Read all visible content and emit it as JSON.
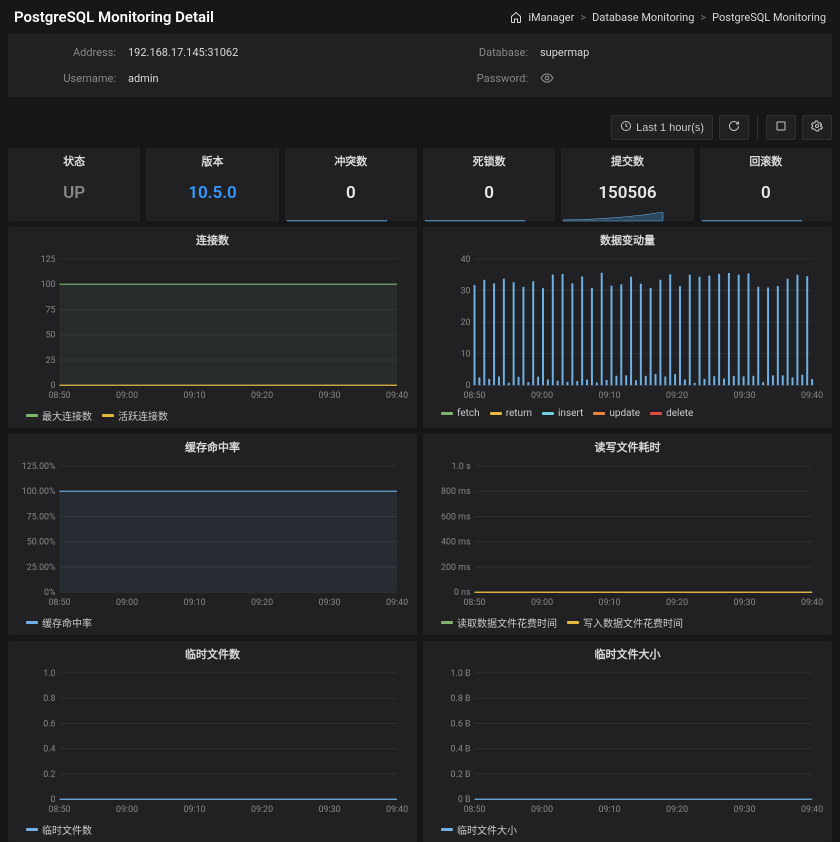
{
  "title": "PostgreSQL Monitoring Detail",
  "breadcrumb": {
    "home": "iManager",
    "level1": "Database Monitoring",
    "level2": "PostgreSQL Monitoring",
    "separator": ">"
  },
  "info": {
    "address_label": "Address:",
    "address_value": "192.168.17.145:31062",
    "username_label": "Username:",
    "username_value": "admin",
    "database_label": "Database:",
    "database_value": "supermap",
    "password_label": "Password:"
  },
  "toolbar": {
    "timerange": "Last 1 hour(s)"
  },
  "stats": {
    "s1": {
      "title": "状态",
      "value": "UP",
      "class": "v-up",
      "sparkline": false,
      "spark_color": "",
      "spark_fill": ""
    },
    "s2": {
      "title": "版本",
      "value": "10.5.0",
      "class": "v-blue",
      "sparkline": false,
      "spark_color": "",
      "spark_fill": ""
    },
    "s3": {
      "title": "冲突数",
      "value": "0",
      "class": "v-white",
      "sparkline": true,
      "spark_color": "#6fb1e4",
      "spark_fill": "#2a4860"
    },
    "s4": {
      "title": "死锁数",
      "value": "0",
      "class": "v-white",
      "sparkline": true,
      "spark_color": "#6fb1e4",
      "spark_fill": "#2a4860"
    },
    "s5": {
      "title": "提交数",
      "value": "150506",
      "class": "v-white",
      "sparkline": true,
      "spark_color": "#6fb1e4",
      "spark_fill": "#2a4860"
    },
    "s6": {
      "title": "回滚数",
      "value": "0",
      "class": "v-white",
      "sparkline": true,
      "spark_color": "#6fb1e4",
      "spark_fill": "#2a4860"
    }
  },
  "charts": {
    "c1": {
      "title": "连接数",
      "y_ticks": [
        "0",
        "25",
        "50",
        "75",
        "100",
        "125"
      ],
      "y_values": [
        0,
        25,
        50,
        75,
        100,
        125
      ],
      "ylim": [
        0,
        125
      ],
      "x_ticks": [
        "08:50",
        "09:00",
        "09:10",
        "09:20",
        "09:30",
        "09:40"
      ],
      "series": [
        {
          "name": "最大连接数",
          "color": "#7eb26d",
          "value_flat": 100,
          "fill": true
        },
        {
          "name": "活跃连接数",
          "color": "#e5b93e",
          "value_flat": 0
        }
      ]
    },
    "c2": {
      "title": "数据变动量",
      "y_ticks": [
        "0",
        "10",
        "20",
        "30",
        "40"
      ],
      "y_values": [
        0,
        10,
        20,
        30,
        40
      ],
      "ylim": [
        0,
        40
      ],
      "x_ticks": [
        "08:50",
        "09:00",
        "09:10",
        "09:20",
        "09:30",
        "09:40"
      ],
      "dense_bars": {
        "color": "#6fb1e4",
        "max": 36,
        "min": 0
      },
      "series": [
        {
          "name": "fetch",
          "color": "#7eb26d"
        },
        {
          "name": "return",
          "color": "#e5b93e"
        },
        {
          "name": "insert",
          "color": "#6ed0e0"
        },
        {
          "name": "update",
          "color": "#ef843c"
        },
        {
          "name": "delete",
          "color": "#e24d42"
        }
      ]
    },
    "c3": {
      "title": "缓存命中率",
      "y_ticks": [
        "0%",
        "25.00%",
        "50.00%",
        "75.00%",
        "100.00%",
        "125.00%"
      ],
      "y_values": [
        0,
        25,
        50,
        75,
        100,
        125
      ],
      "ylim": [
        0,
        125
      ],
      "x_ticks": [
        "08:50",
        "09:00",
        "09:10",
        "09:20",
        "09:30",
        "09:40"
      ],
      "series": [
        {
          "name": "缓存命中率",
          "color": "#6fb1e4",
          "value_flat": 100,
          "fill": true
        }
      ]
    },
    "c4": {
      "title": "读写文件耗时",
      "y_ticks": [
        "0 ns",
        "200 ms",
        "400 ms",
        "600 ms",
        "800 ms",
        "1.0 s"
      ],
      "y_values": [
        0,
        200,
        400,
        600,
        800,
        1000
      ],
      "ylim": [
        0,
        1000
      ],
      "x_ticks": [
        "08:50",
        "09:00",
        "09:10",
        "09:20",
        "09:30",
        "09:40"
      ],
      "series": [
        {
          "name": "读取数据文件花费时间",
          "color": "#7eb26d",
          "value_flat": 0
        },
        {
          "name": "写入数据文件花费时间",
          "color": "#e5b93e",
          "value_flat": 0
        }
      ]
    },
    "c5": {
      "title": "临时文件数",
      "y_ticks": [
        "0",
        "0.2",
        "0.4",
        "0.6",
        "0.8",
        "1.0"
      ],
      "y_values": [
        0,
        0.2,
        0.4,
        0.6,
        0.8,
        1.0
      ],
      "ylim": [
        0,
        1.0
      ],
      "x_ticks": [
        "08:50",
        "09:00",
        "09:10",
        "09:20",
        "09:30",
        "09:40"
      ],
      "series": [
        {
          "name": "临时文件数",
          "color": "#6fb1e4",
          "value_flat": 0
        }
      ]
    },
    "c6": {
      "title": "临时文件大小",
      "y_ticks": [
        "0 B",
        "0.2 B",
        "0.4 B",
        "0.6 B",
        "0.8 B",
        "1.0 B"
      ],
      "y_values": [
        0,
        0.2,
        0.4,
        0.6,
        0.8,
        1.0
      ],
      "ylim": [
        0,
        1.0
      ],
      "x_ticks": [
        "08:50",
        "09:00",
        "09:10",
        "09:20",
        "09:30",
        "09:40"
      ],
      "series": [
        {
          "name": "临时文件大小",
          "color": "#6fb1e4",
          "value_flat": 0
        }
      ]
    }
  },
  "colors": {
    "panel_bg": "#212124",
    "page_bg": "#161719",
    "grid": "#2f2f32",
    "axis_text": "#888"
  }
}
